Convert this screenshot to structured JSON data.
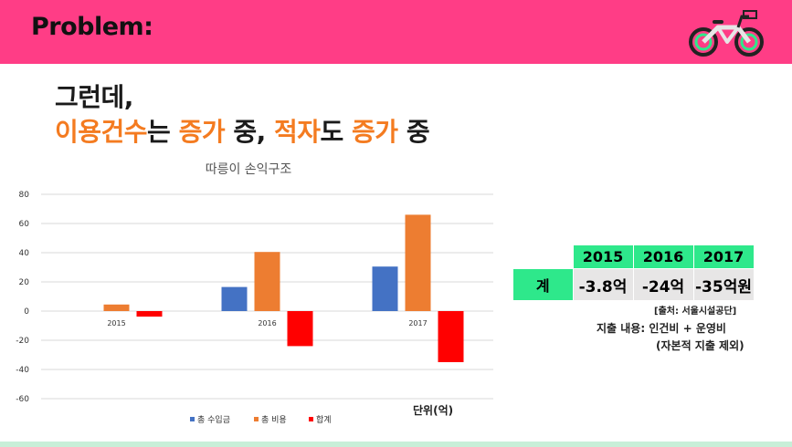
{
  "header": {
    "title": "Problem:",
    "bike_icon": "bicycle-icon"
  },
  "headline": {
    "line1": "그런데,",
    "line2": {
      "part1": "이용건수",
      "part2": "는 ",
      "part3": "증가",
      "part4": " 중, ",
      "part5": "적자",
      "part6": "도 ",
      "part7": "증가",
      "part8": " 중"
    }
  },
  "colors": {
    "header_pink": "#ff3d86",
    "accent_orange": "#f47b20",
    "table_green": "#2ee88b",
    "series_blue": "#4472c4",
    "series_orange": "#ed7d31",
    "series_red": "#ff0000"
  },
  "chart_data": {
    "type": "bar",
    "title": "따릉이 손익구조",
    "categories": [
      "2015",
      "2016",
      "2017"
    ],
    "series": [
      {
        "name": "총 수입금",
        "values": [
          0,
          16.5,
          30.5
        ],
        "color": "#4472c4"
      },
      {
        "name": "총 비용",
        "values": [
          4.5,
          40.5,
          66.0
        ],
        "color": "#ed7d31"
      },
      {
        "name": "합계",
        "values": [
          -3.8,
          -24.0,
          -35.0
        ],
        "color": "#ff0000"
      }
    ],
    "ylim": [
      -60,
      80
    ],
    "yticks": [
      "80",
      "60",
      "40",
      "20",
      "0",
      "-20",
      "-40",
      "-60"
    ],
    "ytick_values": [
      80,
      60,
      40,
      20,
      0,
      -20,
      -40,
      -60
    ],
    "grid": true,
    "legend": "bottom",
    "xlabel": "",
    "ylabel": ""
  },
  "unit_label": "단위(억)",
  "summary_table": {
    "years": [
      "2015",
      "2016",
      "2017"
    ],
    "row_label": "계",
    "values": [
      "-3.8억",
      "-24억",
      "-35억원"
    ]
  },
  "source_note": "[출처: 서울시설공단]",
  "expense_note": "지출 내용: 인건비 + 운영비",
  "expense_note2": "(자본적 지출 제외)"
}
